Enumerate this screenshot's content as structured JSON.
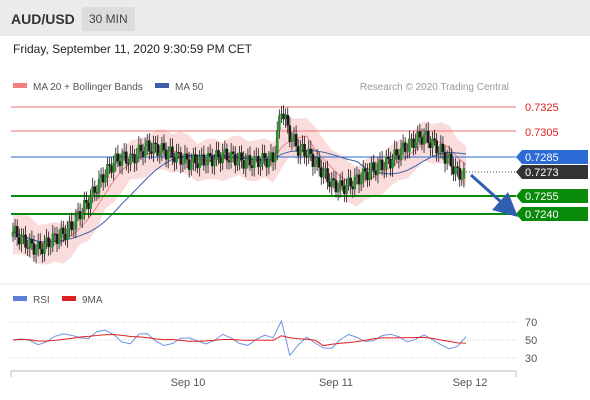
{
  "header": {
    "pair": "AUD/USD",
    "timeframe": "30 MIN"
  },
  "datetime": "Friday, September 11, 2020 9:30:59 PM CET",
  "legend": [
    {
      "name": "MA 20 + Bollinger Bands",
      "color": "#f08080"
    },
    {
      "name": "MA 50",
      "color": "#3b5ea8"
    }
  ],
  "credit": "Research © 2020 Trading Central",
  "levels": [
    {
      "value": "0.7325",
      "style": "resistance",
      "color": "#e02020"
    },
    {
      "value": "0.7305",
      "style": "resistance",
      "color": "#e02020"
    },
    {
      "value": "0.7285",
      "style": "pivot",
      "color": "#2a6bd6"
    },
    {
      "value": "0.7273",
      "style": "last-price",
      "color": "#333333"
    },
    {
      "value": "0.7255",
      "style": "support",
      "color": "#0a8a0a"
    },
    {
      "value": "0.7240",
      "style": "support",
      "color": "#0a8a0a"
    }
  ],
  "rsi_legend": [
    {
      "name": "RSI",
      "color": "#5b7fd6"
    },
    {
      "name": "9MA",
      "color": "#e02020"
    }
  ],
  "rsi_ticks": [
    "70",
    "50",
    "30"
  ],
  "x_ticks": [
    "Sep 10",
    "Sep 11",
    "Sep 12"
  ],
  "chart_data": {
    "type": "candlestick",
    "title": "AUD/USD",
    "timeframe": "30 MIN",
    "x_ticks": [
      "Sep 10",
      "Sep 11",
      "Sep 12"
    ],
    "price_levels": [
      0.7325,
      0.7305,
      0.7285,
      0.7273,
      0.7255,
      0.724
    ],
    "last_price": 0.7273,
    "price_close_approx": [
      0.7226,
      0.722,
      0.7215,
      0.7212,
      0.7216,
      0.7221,
      0.7224,
      0.723,
      0.7241,
      0.725,
      0.7262,
      0.7272,
      0.7281,
      0.7285,
      0.7283,
      0.7289,
      0.7293,
      0.7292,
      0.729,
      0.7287,
      0.7284,
      0.7281,
      0.7282,
      0.7283,
      0.7284,
      0.7287,
      0.7285,
      0.7283,
      0.7281,
      0.7282,
      0.7283,
      0.7283,
      0.7324,
      0.7303,
      0.7292,
      0.7289,
      0.7281,
      0.7273,
      0.7264,
      0.7261,
      0.7263,
      0.7267,
      0.7272,
      0.7276,
      0.7279,
      0.7282,
      0.7289,
      0.7294,
      0.7299,
      0.7302,
      0.7296,
      0.729,
      0.7282,
      0.7272,
      0.7271
    ],
    "rsi": {
      "name": "RSI",
      "period_ticks": [
        70,
        50,
        30
      ],
      "ma_name": "9MA"
    }
  }
}
